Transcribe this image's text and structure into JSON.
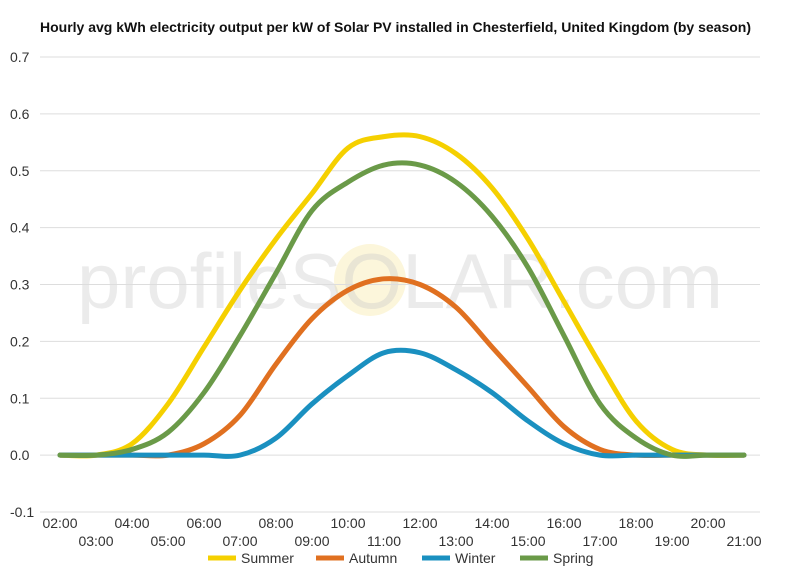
{
  "chart_data": {
    "type": "line",
    "title": "Hourly avg kWh electricity output per kW of Solar PV installed in Chesterfield, United Kingdom (by season)",
    "xlabel": "",
    "ylabel": "",
    "x": [
      "02:00",
      "03:00",
      "04:00",
      "05:00",
      "06:00",
      "07:00",
      "08:00",
      "09:00",
      "10:00",
      "11:00",
      "12:00",
      "13:00",
      "14:00",
      "15:00",
      "16:00",
      "17:00",
      "18:00",
      "19:00",
      "20:00",
      "21:00"
    ],
    "x_tick_labels": [
      "02:00",
      "03:00",
      "04:00",
      "05:00",
      "06:00",
      "07:00",
      "08:00",
      "09:00",
      "10:00",
      "11:00",
      "12:00",
      "13:00",
      "14:00",
      "15:00",
      "16:00",
      "17:00",
      "18:00",
      "19:00",
      "20:00",
      "21:00"
    ],
    "ylim": [
      -0.1,
      0.7
    ],
    "y_ticks": [
      "-0.1",
      "0.0",
      "0.1",
      "0.2",
      "0.3",
      "0.4",
      "0.5",
      "0.6",
      "0.7"
    ],
    "grid": "horizontal",
    "legend_position": "bottom",
    "watermark": "profileSOLAR.com",
    "series": [
      {
        "name": "Summer",
        "color": "#f5d000",
        "values": [
          0.0,
          0.0,
          0.02,
          0.09,
          0.19,
          0.29,
          0.38,
          0.46,
          0.54,
          0.56,
          0.56,
          0.53,
          0.47,
          0.38,
          0.27,
          0.16,
          0.06,
          0.01,
          0.0,
          0.0
        ]
      },
      {
        "name": "Autumn",
        "color": "#e07020",
        "values": [
          0.0,
          0.0,
          0.0,
          0.0,
          0.02,
          0.07,
          0.16,
          0.24,
          0.29,
          0.31,
          0.3,
          0.26,
          0.19,
          0.12,
          0.05,
          0.01,
          0.0,
          0.0,
          0.0,
          0.0
        ]
      },
      {
        "name": "Winter",
        "color": "#1a90c0",
        "values": [
          0.0,
          0.0,
          0.0,
          0.0,
          0.0,
          0.0,
          0.03,
          0.09,
          0.14,
          0.18,
          0.18,
          0.15,
          0.11,
          0.06,
          0.02,
          0.0,
          0.0,
          0.0,
          0.0,
          0.0
        ]
      },
      {
        "name": "Spring",
        "color": "#6a9a48",
        "values": [
          0.0,
          0.0,
          0.01,
          0.04,
          0.11,
          0.21,
          0.32,
          0.43,
          0.48,
          0.51,
          0.51,
          0.48,
          0.42,
          0.33,
          0.21,
          0.09,
          0.03,
          0.0,
          0.0,
          0.0
        ]
      }
    ]
  }
}
